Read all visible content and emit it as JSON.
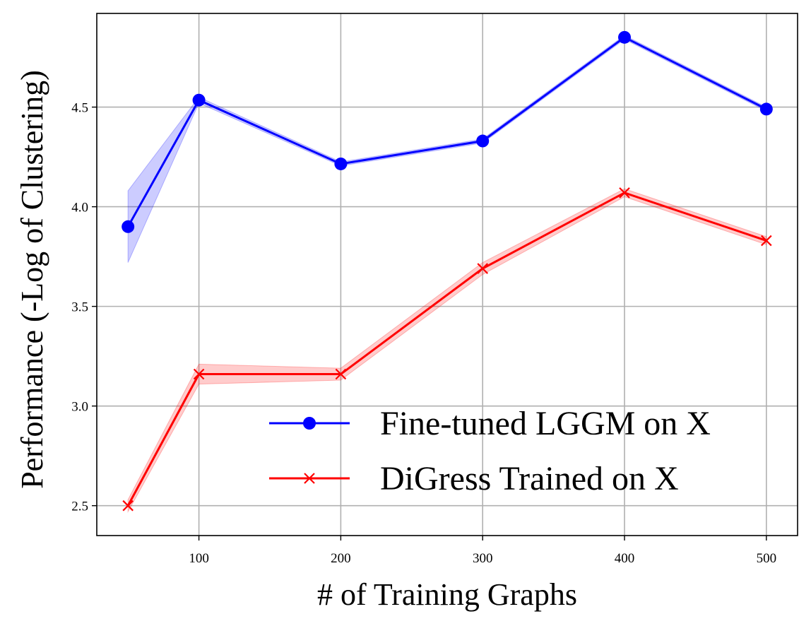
{
  "chart_data": {
    "type": "line",
    "xlabel": "# of Training Graphs",
    "ylabel": "Performance (-Log of Clustering)",
    "xlim": [
      28,
      522
    ],
    "ylim": [
      2.35,
      4.97
    ],
    "xticks": [
      100,
      200,
      300,
      400,
      500
    ],
    "yticks": [
      2.5,
      3.0,
      3.5,
      4.0,
      4.5
    ],
    "xtick_labels": [
      "100",
      "200",
      "300",
      "400",
      "500"
    ],
    "ytick_labels": [
      "2.5",
      "3.0",
      "3.5",
      "4.0",
      "4.5"
    ],
    "grid": true,
    "legend_position": "lower-right",
    "series": [
      {
        "name": "Fine-tuned LGGM on X",
        "color": "#0000ff",
        "marker": "circle",
        "x": [
          50,
          100,
          200,
          300,
          400,
          500
        ],
        "y": [
          3.9,
          4.535,
          4.215,
          4.33,
          4.85,
          4.49
        ],
        "y_lower": [
          3.72,
          4.52,
          4.205,
          4.32,
          4.84,
          4.48
        ],
        "y_upper": [
          4.08,
          4.55,
          4.225,
          4.34,
          4.86,
          4.5
        ]
      },
      {
        "name": "DiGress Trained on X",
        "color": "#ff0000",
        "marker": "x",
        "x": [
          50,
          100,
          200,
          300,
          400,
          500
        ],
        "y": [
          2.5,
          3.16,
          3.16,
          3.69,
          4.07,
          3.83
        ],
        "y_lower": [
          2.47,
          3.11,
          3.13,
          3.66,
          4.05,
          3.81
        ],
        "y_upper": [
          2.53,
          3.21,
          3.19,
          3.72,
          4.09,
          3.85
        ]
      }
    ]
  }
}
